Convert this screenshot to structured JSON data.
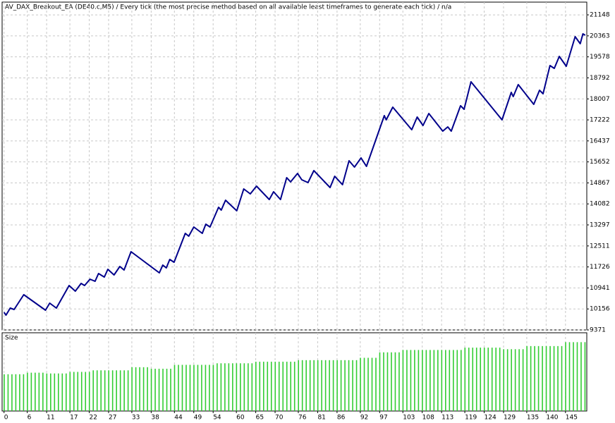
{
  "chart_data": [
    {
      "type": "line",
      "title": "AV_DAX_Breakout_EA (DE40.c,M5) / Every tick (the most precise method based on all available least timeframes to generate each tick) / n/a",
      "color": "#00008b",
      "x": [
        0,
        0.5,
        1.6,
        2.6,
        5.1,
        10.7,
        11.8,
        13.5,
        16.8,
        18.4,
        19.9,
        20.8,
        22.2,
        23.5,
        24.4,
        25.9,
        26.8,
        28.4,
        29.9,
        31.0,
        32.8,
        40.1,
        41.0,
        41.9,
        42.8,
        43.9,
        46.8,
        47.7,
        49.0,
        51.2,
        52.1,
        53.2,
        55.4,
        56.1,
        57.2,
        60.1,
        61.9,
        63.6,
        65.2,
        68.5,
        69.6,
        71.4,
        73.0,
        74.0,
        75.8,
        76.9,
        78.5,
        80.0,
        84.2,
        85.4,
        87.4,
        89.1,
        90.5,
        92.2,
        93.6,
        98.2,
        98.7,
        100.4,
        105.3,
        106.7,
        108.2,
        109.7,
        113.3,
        114.6,
        115.5,
        117.9,
        118.8,
        120.6,
        128.6,
        131.0,
        131.5,
        132.8,
        136.8,
        138.3,
        139.2,
        141.0,
        142.1,
        143.4,
        145.2,
        147.5,
        148.8,
        149.5,
        150.1
      ],
      "values": [
        10030,
        9924,
        10188,
        10135,
        10689,
        10109,
        10372,
        10188,
        11031,
        10820,
        11110,
        11031,
        11268,
        11189,
        11479,
        11347,
        11637,
        11426,
        11743,
        11611,
        12296,
        11505,
        11795,
        11690,
        12006,
        11901,
        12981,
        12876,
        13218,
        12981,
        13324,
        13218,
        13956,
        13851,
        14219,
        13824,
        14641,
        14457,
        14746,
        14246,
        14536,
        14246,
        15063,
        14905,
        15221,
        14984,
        14878,
        15326,
        14694,
        15115,
        14799,
        15695,
        15458,
        15800,
        15484,
        17381,
        17223,
        17698,
        16854,
        17329,
        17013,
        17460,
        16802,
        16960,
        16802,
        17750,
        17619,
        18646,
        17223,
        18251,
        18093,
        18541,
        17803,
        18330,
        18198,
        19252,
        19147,
        19595,
        19226,
        20333,
        20069,
        20438,
        20385
      ],
      "xlim": [
        -0.5,
        150.5
      ],
      "ylim": [
        9371,
        21624
      ],
      "yticks": [
        9371,
        10156,
        10941,
        11726,
        12511,
        13297,
        14082,
        14867,
        15652,
        16437,
        17222,
        18007,
        18792,
        19578,
        20363,
        21148
      ],
      "xticks": [
        0,
        6,
        11,
        17,
        22,
        27,
        33,
        38,
        44,
        49,
        54,
        60,
        65,
        70,
        76,
        81,
        86,
        92,
        97,
        103,
        108,
        113,
        119,
        124,
        129,
        135,
        140,
        145
      ],
      "grid": true
    },
    {
      "type": "bar",
      "title": "Size",
      "color": "#32cd32",
      "values": [
        0.47,
        0.47,
        0.47,
        0.47,
        0.47,
        0.47,
        0.49,
        0.49,
        0.49,
        0.49,
        0.49,
        0.48,
        0.48,
        0.48,
        0.48,
        0.48,
        0.48,
        0.5,
        0.5,
        0.5,
        0.5,
        0.5,
        0.5,
        0.52,
        0.52,
        0.52,
        0.52,
        0.52,
        0.52,
        0.52,
        0.52,
        0.52,
        0.52,
        0.56,
        0.56,
        0.56,
        0.56,
        0.56,
        0.54,
        0.54,
        0.54,
        0.54,
        0.54,
        0.54,
        0.59,
        0.59,
        0.59,
        0.59,
        0.59,
        0.59,
        0.59,
        0.59,
        0.59,
        0.59,
        0.59,
        0.61,
        0.61,
        0.61,
        0.61,
        0.61,
        0.61,
        0.61,
        0.61,
        0.61,
        0.61,
        0.63,
        0.63,
        0.63,
        0.63,
        0.63,
        0.63,
        0.63,
        0.63,
        0.63,
        0.63,
        0.63,
        0.65,
        0.65,
        0.65,
        0.65,
        0.65,
        0.65,
        0.65,
        0.65,
        0.65,
        0.65,
        0.65,
        0.65,
        0.65,
        0.65,
        0.65,
        0.65,
        0.68,
        0.68,
        0.68,
        0.68,
        0.68,
        0.75,
        0.75,
        0.75,
        0.75,
        0.75,
        0.75,
        0.78,
        0.78,
        0.78,
        0.78,
        0.78,
        0.78,
        0.78,
        0.78,
        0.78,
        0.78,
        0.78,
        0.78,
        0.78,
        0.78,
        0.78,
        0.78,
        0.81,
        0.81,
        0.81,
        0.81,
        0.81,
        0.81,
        0.81,
        0.81,
        0.81,
        0.81,
        0.79,
        0.79,
        0.79,
        0.79,
        0.79,
        0.79,
        0.83,
        0.83,
        0.83,
        0.83,
        0.83,
        0.83,
        0.83,
        0.83,
        0.83,
        0.83,
        0.88,
        0.88,
        0.88,
        0.88,
        0.88,
        0.88
      ],
      "ylim": [
        0,
        1
      ],
      "xlim": [
        -0.5,
        150.5
      ],
      "xticks": [
        0,
        6,
        11,
        17,
        22,
        27,
        33,
        38,
        44,
        49,
        54,
        60,
        65,
        70,
        76,
        81,
        86,
        92,
        97,
        103,
        108,
        113,
        119,
        124,
        129,
        135,
        140,
        145
      ],
      "grid": true
    }
  ]
}
